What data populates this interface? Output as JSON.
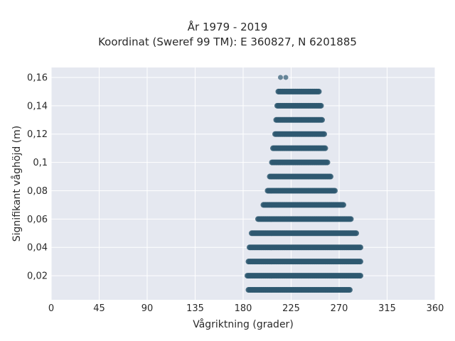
{
  "chart_data": {
    "type": "scatter",
    "title": "År 1979 - 2019",
    "subtitle": "Koordinat (Sweref 99 TM): E 360827, N 6201885",
    "xlabel": "Vågriktning (grader)",
    "ylabel": "Signifikant våghöjd (m)",
    "xlim": [
      0,
      360
    ],
    "ylim": [
      0.003,
      0.167
    ],
    "xticks": [
      "0",
      "45",
      "90",
      "135",
      "180",
      "225",
      "270",
      "315",
      "360"
    ],
    "xtick_values": [
      0,
      45,
      90,
      135,
      180,
      225,
      270,
      315,
      360
    ],
    "yticks": [
      "0,02",
      "0,04",
      "0,06",
      "0,08",
      "0,1",
      "0,12",
      "0,14",
      "0,16"
    ],
    "ytick_values": [
      0.02,
      0.04,
      0.06,
      0.08,
      0.1,
      0.12,
      0.14,
      0.16
    ],
    "grid": true,
    "marker_color": "#2e5870",
    "background": "#e5e8f0",
    "point_bands": [
      {
        "y": 0.16,
        "points": [
          215,
          220
        ]
      },
      {
        "y": 0.15,
        "x_min": 213,
        "x_max": 251
      },
      {
        "y": 0.14,
        "x_min": 212,
        "x_max": 253
      },
      {
        "y": 0.13,
        "x_min": 211,
        "x_max": 254
      },
      {
        "y": 0.12,
        "x_min": 210,
        "x_max": 256
      },
      {
        "y": 0.11,
        "x_min": 208,
        "x_max": 257
      },
      {
        "y": 0.1,
        "x_min": 207,
        "x_max": 259
      },
      {
        "y": 0.09,
        "x_min": 205,
        "x_max": 262
      },
      {
        "y": 0.08,
        "x_min": 203,
        "x_max": 266
      },
      {
        "y": 0.07,
        "x_min": 199,
        "x_max": 274
      },
      {
        "y": 0.06,
        "x_min": 194,
        "x_max": 281
      },
      {
        "y": 0.05,
        "x_min": 188,
        "x_max": 286
      },
      {
        "y": 0.04,
        "x_min": 186,
        "x_max": 290
      },
      {
        "y": 0.03,
        "x_min": 185,
        "x_max": 290
      },
      {
        "y": 0.02,
        "x_min": 184,
        "x_max": 290
      },
      {
        "y": 0.01,
        "x_min": 185,
        "x_max": 280
      }
    ]
  }
}
